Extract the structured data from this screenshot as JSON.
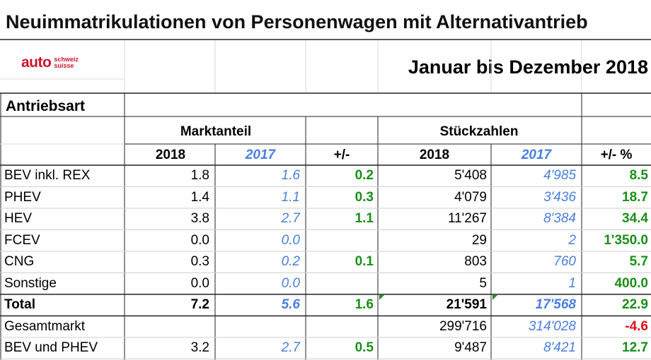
{
  "title": "Neuimmatrikulationen von Personenwagen mit Alternativantrieb",
  "logo": {
    "main": "auto",
    "sub1": "schweiz",
    "sub2": "suisse"
  },
  "period": "Januar bis Dezember 2018",
  "section_label": "Antriebsart",
  "groups": {
    "market_share": "Marktanteil",
    "units": "Stückzahlen"
  },
  "columns": {
    "ms_2018": "2018",
    "ms_2017": "2017",
    "ms_diff": "+/-",
    "u_2018": "2018",
    "u_2017": "2017",
    "u_diff": "+/- %"
  },
  "colors": {
    "blue": "#4a7fe0",
    "green": "#1a8f1a",
    "red": "#e0101a",
    "brand": "#d0142f"
  },
  "rows": [
    {
      "label": "BEV inkl. REX",
      "ms_2018": "1.8",
      "ms_2017": "1.6",
      "ms_diff": "0.2",
      "u_2018": "5'408",
      "u_2017": "4'985",
      "u_diff": "8.5"
    },
    {
      "label": "PHEV",
      "ms_2018": "1.4",
      "ms_2017": "1.1",
      "ms_diff": "0.3",
      "u_2018": "4'079",
      "u_2017": "3'436",
      "u_diff": "18.7"
    },
    {
      "label": "HEV",
      "ms_2018": "3.8",
      "ms_2017": "2.7",
      "ms_diff": "1.1",
      "u_2018": "11'267",
      "u_2017": "8'384",
      "u_diff": "34.4"
    },
    {
      "label": "FCEV",
      "ms_2018": "0.0",
      "ms_2017": "0.0",
      "ms_diff": "",
      "u_2018": "29",
      "u_2017": "2",
      "u_diff": "1'350.0"
    },
    {
      "label": "CNG",
      "ms_2018": "0.3",
      "ms_2017": "0.2",
      "ms_diff": "0.1",
      "u_2018": "803",
      "u_2017": "760",
      "u_diff": "5.7"
    },
    {
      "label": "Sonstige",
      "ms_2018": "0.0",
      "ms_2017": "0.0",
      "ms_diff": "",
      "u_2018": "5",
      "u_2017": "1",
      "u_diff": "400.0"
    },
    {
      "label": "Total",
      "ms_2018": "7.2",
      "ms_2017": "5.6",
      "ms_diff": "1.6",
      "u_2018": "21'591",
      "u_2017": "17'568",
      "u_diff": "22.9"
    },
    {
      "label": "Gesamtmarkt",
      "ms_2018": "",
      "ms_2017": "",
      "ms_diff": "",
      "u_2018": "299'716",
      "u_2017": "314'028",
      "u_diff": "-4.6"
    },
    {
      "label": "BEV und PHEV",
      "ms_2018": "3.2",
      "ms_2017": "2.7",
      "ms_diff": "0.5",
      "u_2018": "9'487",
      "u_2017": "8'421",
      "u_diff": "12.7"
    }
  ]
}
